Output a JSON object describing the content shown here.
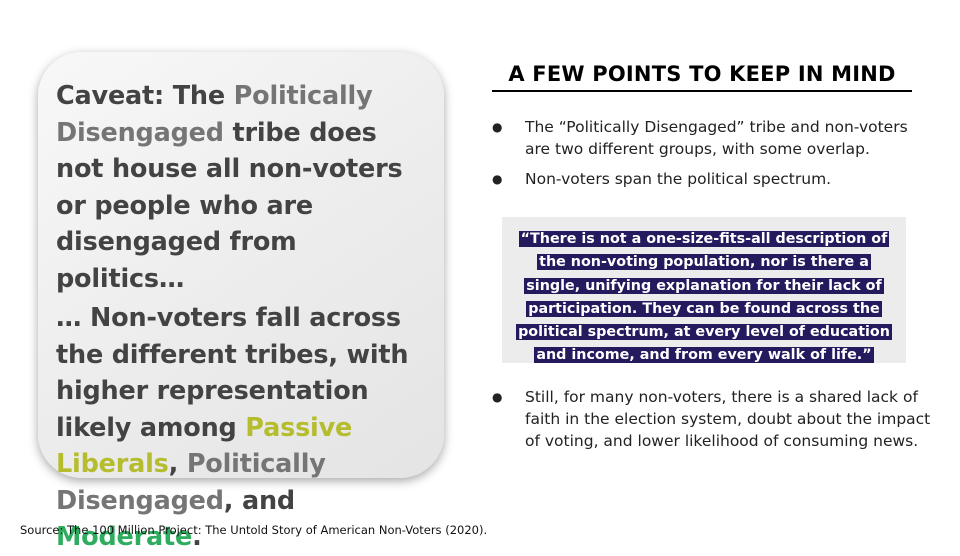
{
  "caveat": {
    "p1": {
      "lead": "Caveat: The ",
      "highlight": "Politically Disengaged",
      "rest": " tribe does not house all non-voters or people who are disengaged from politics…"
    },
    "p2": {
      "lead": "… Non-voters fall across the different tribes, with higher representation likely among ",
      "tribe1": "Passive Liberals",
      "sep1": ", ",
      "tribe2": "Politically Disengaged",
      "sep2": ", and ",
      "tribe3": "Moderate",
      "end": "."
    }
  },
  "points": {
    "heading": "A FEW POINTS TO KEEP IN MIND",
    "bullet_glyph": "●",
    "items": [
      "The “Politically Disengaged” tribe and non-voters are two different groups, with some overlap.",
      "Non-voters span the political spectrum.",
      "Still, for many non-voters, there is a shared lack of faith in the election system, doubt about the impact of voting, and lower likelihood of consuming news."
    ],
    "quote": "“There is not a one-size-fits-all description of the non-voting population, nor is there a single, unifying explanation for their lack of participation. They can be found across the political spectrum, at every level of education and income, and from every walk of life.”"
  },
  "source": "Source: The 100 Million Project: The Untold Story of American Non-Voters (2020).",
  "colors": {
    "card_text": "#434343",
    "highlight_grey": "#757575",
    "passive_liberals": "#b5bd2f",
    "moderate": "#2fad5f",
    "quote_bg": "#241a5e",
    "quote_panel": "#ececec"
  }
}
